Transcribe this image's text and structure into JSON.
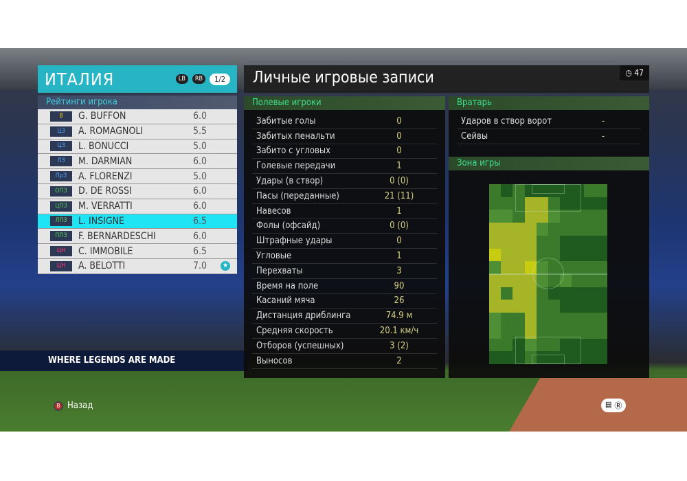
{
  "team": {
    "name": "ИТАЛИЯ",
    "lb": "LB",
    "rb": "RB",
    "page": "1/2",
    "ratings_title": "Рейтинги игрока",
    "players": [
      {
        "pos": "В",
        "name": "G. BUFFON",
        "rating": "6.0",
        "pos_color": "#f0d020"
      },
      {
        "pos": "ЦЗ",
        "name": "A. ROMAGNOLI",
        "rating": "5.5",
        "pos_color": "#5aa8ff"
      },
      {
        "pos": "ЦЗ",
        "name": "L. BONUCCI",
        "rating": "5.0",
        "pos_color": "#5aa8ff"
      },
      {
        "pos": "ЛЗ",
        "name": "M. DARMIAN",
        "rating": "6.0",
        "pos_color": "#5aa8ff"
      },
      {
        "pos": "ПрЗ",
        "name": "A. FLORENZI",
        "rating": "5.0",
        "pos_color": "#5aa8ff"
      },
      {
        "pos": "ОПЗ",
        "name": "D. DE ROSSI",
        "rating": "6.0",
        "pos_color": "#5ad05a"
      },
      {
        "pos": "ЦПЗ",
        "name": "M. VERRATTI",
        "rating": "6.0",
        "pos_color": "#5ad05a"
      },
      {
        "pos": "ЛПЗ",
        "name": "L. INSIGNE",
        "rating": "6.5",
        "pos_color": "#5ad05a",
        "selected": true
      },
      {
        "pos": "ППЗ",
        "name": "F. BERNARDESCHI",
        "rating": "6.0",
        "pos_color": "#5ad05a"
      },
      {
        "pos": "ЦН",
        "name": "C. IMMOBILE",
        "rating": "6.5",
        "pos_color": "#ff3a80"
      },
      {
        "pos": "ЦН",
        "name": "A. BELOTTI",
        "rating": "7.0",
        "pos_color": "#ff3a80",
        "star": true
      }
    ]
  },
  "records": {
    "title": "Личные игровые записи",
    "timer": "47",
    "timer_icon": "clock-icon",
    "field_title": "Полевые игроки",
    "field_stats": [
      {
        "label": "Забитые голы",
        "value": "0"
      },
      {
        "label": "Забитых пенальти",
        "value": "0"
      },
      {
        "label": "Забито с угловых",
        "value": "0"
      },
      {
        "label": "Голевые передачи",
        "value": "1"
      },
      {
        "label": "Удары (в створ)",
        "value": "0 (0)"
      },
      {
        "label": "Пасы (переданные)",
        "value": "21 (11)"
      },
      {
        "label": "Навесов",
        "value": "1"
      },
      {
        "label": "Фолы (офсайд)",
        "value": "0 (0)"
      },
      {
        "label": "Штрафные удары",
        "value": "0"
      },
      {
        "label": "Угловые",
        "value": "1"
      },
      {
        "label": "Перехваты",
        "value": "3"
      },
      {
        "label": "Время на поле",
        "value": "90"
      },
      {
        "label": "Касаний мяча",
        "value": "26"
      },
      {
        "label": "Дистанция дриблинга",
        "value": "74.9 м"
      },
      {
        "label": "Средняя скорость",
        "value": "20.1 км/ч"
      },
      {
        "label": "Отборов (успешных)",
        "value": "3 (2)"
      },
      {
        "label": "Выносов",
        "value": "2"
      }
    ],
    "gk_title": "Вратарь",
    "gk_stats": [
      {
        "label": "Ударов в створ ворот",
        "value": "-"
      },
      {
        "label": "Сейвы",
        "value": "-"
      }
    ],
    "zone_title": "Зона игры",
    "heatmap_levels": [
      [
        1,
        0,
        1,
        0,
        0,
        0,
        0,
        0,
        1,
        1
      ],
      [
        1,
        1,
        1,
        3,
        3,
        1,
        0,
        0,
        0,
        0
      ],
      [
        2,
        2,
        1,
        3,
        3,
        2,
        1,
        1,
        1,
        1
      ],
      [
        3,
        3,
        3,
        3,
        2,
        1,
        1,
        1,
        1,
        1
      ],
      [
        3,
        3,
        3,
        3,
        1,
        1,
        0,
        0,
        0,
        0
      ],
      [
        4,
        3,
        3,
        3,
        1,
        1,
        0,
        0,
        0,
        0
      ],
      [
        2,
        3,
        3,
        4,
        2,
        1,
        1,
        1,
        1,
        1
      ],
      [
        3,
        3,
        3,
        3,
        2,
        1,
        2,
        1,
        1,
        1
      ],
      [
        3,
        1,
        3,
        3,
        1,
        0,
        0,
        0,
        0,
        0
      ],
      [
        3,
        3,
        3,
        3,
        1,
        1,
        0,
        0,
        0,
        0
      ],
      [
        2,
        1,
        1,
        3,
        1,
        1,
        1,
        1,
        1,
        1
      ],
      [
        2,
        1,
        1,
        3,
        1,
        1,
        1,
        1,
        1,
        1
      ],
      [
        1,
        1,
        0,
        2,
        1,
        1,
        0,
        0,
        0,
        0
      ],
      [
        0,
        0,
        0,
        1,
        0,
        0,
        0,
        0,
        0,
        0
      ]
    ],
    "heatmap_colors": [
      "#1f5a1f",
      "#3a7a2a",
      "#4e8e34",
      "#a6b428",
      "#c8cc10"
    ]
  },
  "footer": {
    "back_button": "B",
    "back_label": "Назад",
    "icons": [
      "chat-icon",
      "rs-icon"
    ]
  },
  "scene": {
    "board_text": "WHERE LEGENDS ARE MADE"
  }
}
